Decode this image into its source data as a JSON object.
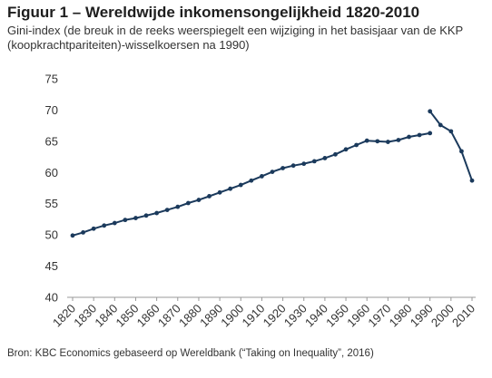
{
  "title": "Figuur 1 – Wereldwijde inkomensongelijkheid 1820-2010",
  "subtitle": "Gini-index (de breuk in de reeks weerspiegelt een wijziging in het basisjaar van de KKP (koopkrachtpariteiten)-wisselkoersen na 1990)",
  "source": "Bron: KBC Economics gebaseerd op Wereldbank (“Taking on Inequality”, 2016)",
  "colors": {
    "series": "#1b3a5c",
    "axis": "#999999"
  },
  "chart_data": {
    "type": "line",
    "title": "Figuur 1 – Wereldwijde inkomensongelijkheid 1820-2010",
    "xlabel": "",
    "ylabel": "",
    "xlim": [
      1820,
      2010
    ],
    "ylim": [
      40,
      75
    ],
    "grid": false,
    "legend": "none",
    "x_ticks": [
      "1820",
      "1830",
      "1840",
      "1850",
      "1860",
      "1870",
      "1880",
      "1890",
      "1900",
      "1910",
      "1920",
      "1930",
      "1940",
      "1950",
      "1960",
      "1970",
      "1980",
      "1990",
      "2000",
      "2010"
    ],
    "y_ticks": [
      "40",
      "45",
      "50",
      "55",
      "60",
      "65",
      "70",
      "75"
    ],
    "series": [
      {
        "x": [
          1820,
          1825,
          1830,
          1835,
          1840,
          1845,
          1850,
          1855,
          1860,
          1865,
          1870,
          1875,
          1880,
          1885,
          1890,
          1895,
          1900,
          1905,
          1910,
          1915,
          1920,
          1925,
          1930,
          1935,
          1940,
          1945,
          1950,
          1955,
          1960,
          1965,
          1970,
          1975,
          1980,
          1985,
          1990
        ],
        "values": [
          49.9,
          50.4,
          51.0,
          51.5,
          51.9,
          52.4,
          52.7,
          53.1,
          53.5,
          54.0,
          54.5,
          55.1,
          55.6,
          56.2,
          56.8,
          57.4,
          58.0,
          58.7,
          59.4,
          60.1,
          60.7,
          61.1,
          61.4,
          61.8,
          62.3,
          62.9,
          63.7,
          64.4,
          65.1,
          65.0,
          64.9,
          65.2,
          65.7,
          66.0,
          66.3
        ]
      },
      {
        "x": [
          1990,
          1995,
          2000,
          2005,
          2010
        ],
        "values": [
          69.8,
          67.6,
          66.6,
          63.4,
          58.7
        ]
      }
    ]
  }
}
